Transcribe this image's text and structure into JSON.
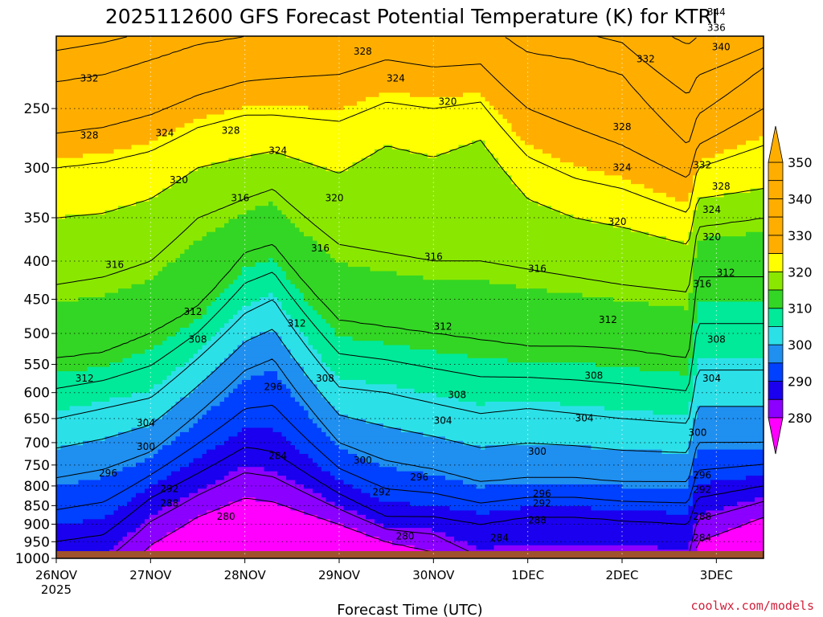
{
  "chart_data": {
    "type": "heatmap",
    "title": "2025112600 GFS Forecast Potential Temperature (K) for KTRI",
    "xlabel": "Forecast Time (UTC)",
    "ylabel": "",
    "y_scale": "log",
    "y_inverted": true,
    "yticks": [
      250,
      300,
      350,
      400,
      450,
      500,
      550,
      600,
      650,
      700,
      750,
      800,
      850,
      900,
      950,
      1000
    ],
    "xticks": [
      {
        "label": "26NOV",
        "sub": "2025",
        "day": 0
      },
      {
        "label": "27NOV",
        "sub": "",
        "day": 1
      },
      {
        "label": "28NOV",
        "sub": "",
        "day": 2
      },
      {
        "label": "29NOV",
        "sub": "",
        "day": 3
      },
      {
        "label": "30NOV",
        "sub": "",
        "day": 4
      },
      {
        "label": "1DEC",
        "sub": "",
        "day": 5
      },
      {
        "label": "2DEC",
        "sub": "",
        "day": 6
      },
      {
        "label": "3DEC",
        "sub": "",
        "day": 7
      }
    ],
    "xlim_days": [
      0,
      7.5
    ],
    "ylim_hpa": [
      1000,
      200
    ],
    "grid": true,
    "colorbar": {
      "levels": [
        280,
        290,
        300,
        310,
        320,
        330,
        340,
        350
      ],
      "colors": [
        "#ff00ff",
        "#8b00ff",
        "#1a00ee",
        "#0040ff",
        "#1f8ff0",
        "#2ce0e8",
        "#00ea99",
        "#33d624",
        "#8ae800",
        "#ffff00",
        "#ffae00"
      ]
    },
    "ground_color": "#a0522d",
    "profile": [
      {
        "day": 0.0,
        "p": [
          [
            280,
            1100
          ],
          [
            288,
            950
          ],
          [
            296,
            780
          ],
          [
            304,
            650
          ],
          [
            312,
            540
          ],
          [
            316,
            430
          ],
          [
            320,
            350
          ],
          [
            324,
            300
          ],
          [
            328,
            270
          ],
          [
            332,
            230
          ],
          [
            340,
            190
          ]
        ]
      },
      {
        "day": 0.5,
        "p": [
          [
            280,
            1100
          ],
          [
            288,
            930
          ],
          [
            296,
            760
          ],
          [
            304,
            630
          ],
          [
            312,
            530
          ],
          [
            316,
            420
          ],
          [
            320,
            345
          ],
          [
            324,
            295
          ],
          [
            328,
            265
          ],
          [
            332,
            225
          ],
          [
            340,
            185
          ]
        ]
      },
      {
        "day": 1.0,
        "p": [
          [
            280,
            960
          ],
          [
            288,
            830
          ],
          [
            296,
            720
          ],
          [
            304,
            610
          ],
          [
            312,
            500
          ],
          [
            316,
            400
          ],
          [
            320,
            330
          ],
          [
            324,
            285
          ],
          [
            328,
            255
          ],
          [
            332,
            215
          ],
          [
            340,
            180
          ]
        ]
      },
      {
        "day": 1.5,
        "p": [
          [
            280,
            880
          ],
          [
            288,
            770
          ],
          [
            296,
            640
          ],
          [
            304,
            540
          ],
          [
            312,
            460
          ],
          [
            316,
            350
          ],
          [
            320,
            300
          ],
          [
            324,
            265
          ],
          [
            328,
            240
          ],
          [
            332,
            205
          ],
          [
            340,
            175
          ]
        ]
      },
      {
        "day": 2.0,
        "p": [
          [
            280,
            830
          ],
          [
            288,
            710
          ],
          [
            296,
            560
          ],
          [
            304,
            470
          ],
          [
            312,
            390
          ],
          [
            316,
            330
          ],
          [
            320,
            290
          ],
          [
            324,
            255
          ],
          [
            328,
            230
          ],
          [
            332,
            200
          ],
          [
            340,
            170
          ]
        ]
      },
      {
        "day": 2.3,
        "p": [
          [
            280,
            840
          ],
          [
            288,
            720
          ],
          [
            296,
            540
          ],
          [
            304,
            450
          ],
          [
            312,
            380
          ],
          [
            316,
            320
          ],
          [
            320,
            285
          ],
          [
            324,
            255
          ],
          [
            328,
            228
          ],
          [
            332,
            198
          ],
          [
            340,
            170
          ]
        ]
      },
      {
        "day": 3.0,
        "p": [
          [
            280,
            900
          ],
          [
            288,
            820
          ],
          [
            296,
            700
          ],
          [
            304,
            590
          ],
          [
            312,
            480
          ],
          [
            316,
            380
          ],
          [
            320,
            305
          ],
          [
            324,
            260
          ],
          [
            328,
            225
          ],
          [
            332,
            195
          ],
          [
            340,
            170
          ]
        ]
      },
      {
        "day": 3.5,
        "p": [
          [
            280,
            950
          ],
          [
            288,
            880
          ],
          [
            296,
            740
          ],
          [
            304,
            600
          ],
          [
            312,
            490
          ],
          [
            316,
            390
          ],
          [
            320,
            280
          ],
          [
            324,
            245
          ],
          [
            328,
            215
          ],
          [
            332,
            190
          ],
          [
            340,
            168
          ]
        ]
      },
      {
        "day": 4.0,
        "p": [
          [
            280,
            980
          ],
          [
            288,
            880
          ],
          [
            296,
            760
          ],
          [
            304,
            620
          ],
          [
            312,
            500
          ],
          [
            316,
            400
          ],
          [
            320,
            290
          ],
          [
            324,
            250
          ],
          [
            328,
            220
          ],
          [
            332,
            192
          ],
          [
            340,
            168
          ]
        ]
      },
      {
        "day": 4.5,
        "p": [
          [
            280,
            1100
          ],
          [
            288,
            900
          ],
          [
            296,
            790
          ],
          [
            304,
            640
          ],
          [
            312,
            510
          ],
          [
            316,
            400
          ],
          [
            320,
            275
          ],
          [
            324,
            245
          ],
          [
            328,
            218
          ],
          [
            332,
            190
          ],
          [
            340,
            168
          ]
        ]
      },
      {
        "day": 5.0,
        "p": [
          [
            280,
            1100
          ],
          [
            288,
            880
          ],
          [
            296,
            780
          ],
          [
            304,
            630
          ],
          [
            312,
            520
          ],
          [
            316,
            410
          ],
          [
            320,
            330
          ],
          [
            324,
            290
          ],
          [
            328,
            250
          ],
          [
            332,
            210
          ],
          [
            340,
            175
          ]
        ]
      },
      {
        "day": 5.5,
        "p": [
          [
            280,
            1100
          ],
          [
            288,
            880
          ],
          [
            296,
            780
          ],
          [
            304,
            640
          ],
          [
            312,
            520
          ],
          [
            316,
            420
          ],
          [
            320,
            350
          ],
          [
            324,
            310
          ],
          [
            328,
            265
          ],
          [
            332,
            215
          ],
          [
            340,
            180
          ]
        ]
      },
      {
        "day": 6.0,
        "p": [
          [
            280,
            1100
          ],
          [
            288,
            890
          ],
          [
            296,
            790
          ],
          [
            304,
            650
          ],
          [
            312,
            525
          ],
          [
            316,
            430
          ],
          [
            320,
            360
          ],
          [
            324,
            320
          ],
          [
            328,
            280
          ],
          [
            332,
            225
          ],
          [
            340,
            185
          ]
        ]
      },
      {
        "day": 6.7,
        "p": [
          [
            280,
            1100
          ],
          [
            288,
            900
          ],
          [
            296,
            790
          ],
          [
            304,
            660
          ],
          [
            312,
            540
          ],
          [
            316,
            440
          ],
          [
            320,
            380
          ],
          [
            324,
            345
          ],
          [
            328,
            310
          ],
          [
            332,
            280
          ],
          [
            340,
            205
          ]
        ]
      },
      {
        "day": 6.8,
        "p": [
          [
            280,
            950
          ],
          [
            288,
            830
          ],
          [
            296,
            700
          ],
          [
            304,
            560
          ],
          [
            312,
            420
          ],
          [
            316,
            360
          ],
          [
            320,
            330
          ],
          [
            324,
            300
          ],
          [
            328,
            280
          ],
          [
            332,
            255
          ],
          [
            340,
            200
          ]
        ]
      },
      {
        "day": 7.5,
        "p": [
          [
            280,
            880
          ],
          [
            288,
            800
          ],
          [
            296,
            700
          ],
          [
            304,
            560
          ],
          [
            312,
            420
          ],
          [
            316,
            350
          ],
          [
            320,
            320
          ],
          [
            324,
            280
          ],
          [
            328,
            250
          ],
          [
            332,
            220
          ],
          [
            340,
            195
          ]
        ]
      }
    ],
    "contour_labels": [
      {
        "text": "332",
        "day": 0.35,
        "p": 228
      },
      {
        "text": "328",
        "day": 0.35,
        "p": 272
      },
      {
        "text": "324",
        "day": 1.15,
        "p": 270
      },
      {
        "text": "328",
        "day": 1.85,
        "p": 268
      },
      {
        "text": "328",
        "day": 3.25,
        "p": 210
      },
      {
        "text": "324",
        "day": 3.6,
        "p": 228
      },
      {
        "text": "320",
        "day": 4.15,
        "p": 245
      },
      {
        "text": "324",
        "day": 2.35,
        "p": 285
      },
      {
        "text": "320",
        "day": 1.3,
        "p": 312
      },
      {
        "text": "316",
        "day": 1.95,
        "p": 330
      },
      {
        "text": "320",
        "day": 2.95,
        "p": 330
      },
      {
        "text": "316",
        "day": 0.62,
        "p": 405
      },
      {
        "text": "316",
        "day": 2.8,
        "p": 385
      },
      {
        "text": "316",
        "day": 4.0,
        "p": 395
      },
      {
        "text": "316",
        "day": 5.1,
        "p": 410
      },
      {
        "text": "312",
        "day": 1.45,
        "p": 468
      },
      {
        "text": "312",
        "day": 2.55,
        "p": 485
      },
      {
        "text": "312",
        "day": 4.1,
        "p": 490
      },
      {
        "text": "312",
        "day": 5.85,
        "p": 480
      },
      {
        "text": "308",
        "day": 1.5,
        "p": 510
      },
      {
        "text": "312",
        "day": 0.3,
        "p": 575
      },
      {
        "text": "308",
        "day": 2.85,
        "p": 575
      },
      {
        "text": "308",
        "day": 4.25,
        "p": 605
      },
      {
        "text": "308",
        "day": 5.7,
        "p": 570
      },
      {
        "text": "304",
        "day": 0.95,
        "p": 660
      },
      {
        "text": "304",
        "day": 4.1,
        "p": 655
      },
      {
        "text": "304",
        "day": 5.6,
        "p": 650
      },
      {
        "text": "300",
        "day": 0.95,
        "p": 710
      },
      {
        "text": "296",
        "day": 2.3,
        "p": 590
      },
      {
        "text": "284",
        "day": 2.35,
        "p": 730
      },
      {
        "text": "300",
        "day": 3.25,
        "p": 740
      },
      {
        "text": "296",
        "day": 3.85,
        "p": 780
      },
      {
        "text": "300",
        "day": 5.1,
        "p": 720
      },
      {
        "text": "296",
        "day": 0.55,
        "p": 770
      },
      {
        "text": "292",
        "day": 1.2,
        "p": 808
      },
      {
        "text": "288",
        "day": 1.2,
        "p": 845
      },
      {
        "text": "280",
        "day": 1.8,
        "p": 880
      },
      {
        "text": "292",
        "day": 3.45,
        "p": 816
      },
      {
        "text": "296",
        "day": 5.15,
        "p": 820
      },
      {
        "text": "292",
        "day": 5.15,
        "p": 845
      },
      {
        "text": "288",
        "day": 5.1,
        "p": 890
      },
      {
        "text": "280",
        "day": 3.7,
        "p": 935
      },
      {
        "text": "284",
        "day": 4.7,
        "p": 940
      },
      {
        "text": "332",
        "day": 6.25,
        "p": 215
      },
      {
        "text": "328",
        "day": 6.0,
        "p": 265
      },
      {
        "text": "324",
        "day": 6.0,
        "p": 300
      },
      {
        "text": "320",
        "day": 5.95,
        "p": 355
      },
      {
        "text": "344",
        "day": 7.0,
        "p": 186
      },
      {
        "text": "336",
        "day": 7.0,
        "p": 195
      },
      {
        "text": "340",
        "day": 7.05,
        "p": 207
      },
      {
        "text": "332",
        "day": 6.85,
        "p": 298
      },
      {
        "text": "328",
        "day": 7.05,
        "p": 318
      },
      {
        "text": "324",
        "day": 6.95,
        "p": 342
      },
      {
        "text": "320",
        "day": 6.95,
        "p": 372
      },
      {
        "text": "316",
        "day": 6.85,
        "p": 430
      },
      {
        "text": "312",
        "day": 7.1,
        "p": 415
      },
      {
        "text": "308",
        "day": 7.0,
        "p": 510
      },
      {
        "text": "304",
        "day": 6.95,
        "p": 575
      },
      {
        "text": "300",
        "day": 6.8,
        "p": 680
      },
      {
        "text": "296",
        "day": 6.85,
        "p": 775
      },
      {
        "text": "292",
        "day": 6.85,
        "p": 810
      },
      {
        "text": "288",
        "day": 6.85,
        "p": 880
      },
      {
        "text": "284",
        "day": 6.85,
        "p": 940
      }
    ],
    "credit": "coolwx.com/models"
  }
}
